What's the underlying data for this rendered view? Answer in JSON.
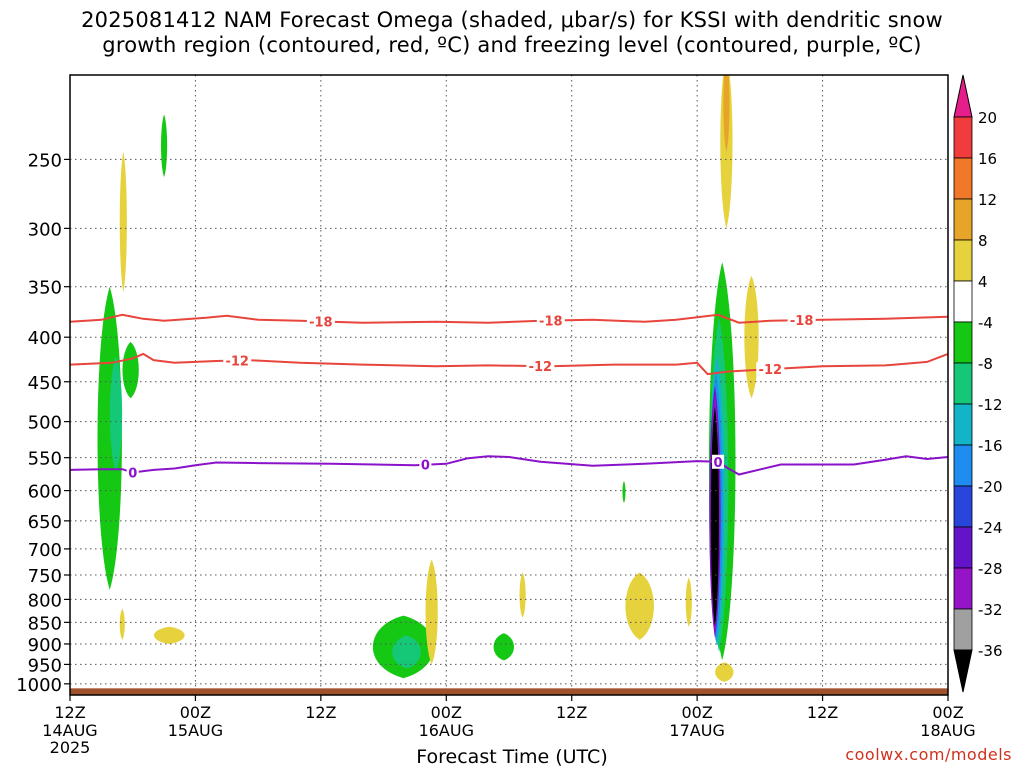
{
  "title": {
    "line1": "2025081412 NAM Forecast Omega (shaded, μbar/s) for KSSI with dendritic snow",
    "line2": "growth region (contoured, red, ºC) and freezing level (contoured, purple, ºC)"
  },
  "credit": "coolwx.com/models",
  "colors": {
    "snow_growth_contour": "#e8453c",
    "freezing_level_contour": "#8a12c8",
    "ground": "#a0522d"
  },
  "chart_data": {
    "type": "heatmap",
    "xlabel": "Forecast Time (UTC)",
    "ylabel": "",
    "xlim_hours": [
      0,
      84
    ],
    "ylim_hpa": [
      1030,
      200
    ],
    "y_scale": "log-pressure",
    "grid": true,
    "x_ticks": [
      {
        "hour": 0,
        "label": "12Z",
        "sub": "14AUG",
        "sub2": "2025"
      },
      {
        "hour": 12,
        "label": "00Z",
        "sub": "15AUG"
      },
      {
        "hour": 24,
        "label": "12Z",
        "sub": ""
      },
      {
        "hour": 36,
        "label": "00Z",
        "sub": "16AUG"
      },
      {
        "hour": 48,
        "label": "12Z",
        "sub": ""
      },
      {
        "hour": 60,
        "label": "00Z",
        "sub": "17AUG"
      },
      {
        "hour": 72,
        "label": "12Z",
        "sub": ""
      },
      {
        "hour": 84,
        "label": "00Z",
        "sub": "18AUG"
      }
    ],
    "y_ticks": [
      "250",
      "300",
      "350",
      "400",
      "450",
      "500",
      "550",
      "600",
      "650",
      "700",
      "750",
      "800",
      "850",
      "900",
      "950",
      "1000"
    ],
    "colorbar": {
      "labels": [
        "20",
        "16",
        "12",
        "8",
        "4",
        "-4",
        "-8",
        "-12",
        "-16",
        "-20",
        "-24",
        "-28",
        "-32",
        "-36"
      ],
      "colors": [
        "#f03c3c",
        "#f07828",
        "#e6a428",
        "#e6d23c",
        "#ffffff",
        "#14c814",
        "#14c878",
        "#14b4c8",
        "#1e8cf0",
        "#2846dc",
        "#6414c8",
        "#9614c8",
        "#a0a0a0",
        "#000000"
      ],
      "top_arrow_color": "#e61e8c",
      "bottom_arrow_color": "#000000"
    },
    "contours": [
      {
        "name": "-18",
        "color": "#e8453c",
        "points": [
          [
            0,
            384
          ],
          [
            3,
            382
          ],
          [
            5,
            377
          ],
          [
            7,
            381
          ],
          [
            9,
            383
          ],
          [
            13,
            380
          ],
          [
            15,
            378
          ],
          [
            18,
            382
          ],
          [
            22,
            383
          ],
          [
            28,
            385
          ],
          [
            35,
            384
          ],
          [
            40,
            385
          ],
          [
            45,
            383
          ],
          [
            50,
            382
          ],
          [
            55,
            384
          ],
          [
            58,
            382
          ],
          [
            62,
            377
          ],
          [
            64,
            385
          ],
          [
            67,
            383
          ],
          [
            72,
            382
          ],
          [
            78,
            381
          ],
          [
            84,
            379
          ]
        ],
        "labels": [
          [
            24,
            "-18"
          ],
          [
            46,
            "-18"
          ],
          [
            70,
            "-18"
          ]
        ]
      },
      {
        "name": "-12",
        "color": "#e8453c",
        "points": [
          [
            0,
            430
          ],
          [
            4,
            428
          ],
          [
            6,
            423
          ],
          [
            7,
            418
          ],
          [
            8,
            425
          ],
          [
            10,
            428
          ],
          [
            14,
            426
          ],
          [
            17,
            425
          ],
          [
            22,
            428
          ],
          [
            28,
            430
          ],
          [
            35,
            432
          ],
          [
            40,
            431
          ],
          [
            46,
            432
          ],
          [
            52,
            430
          ],
          [
            58,
            430
          ],
          [
            60,
            428
          ],
          [
            61,
            441
          ],
          [
            63,
            438
          ],
          [
            66,
            436
          ],
          [
            72,
            432
          ],
          [
            78,
            431
          ],
          [
            82,
            427
          ],
          [
            84,
            418
          ]
        ],
        "labels": [
          [
            16,
            "-12"
          ],
          [
            45,
            "-12"
          ],
          [
            67,
            "-12"
          ]
        ]
      },
      {
        "name": "0",
        "color": "#8a12c8",
        "points": [
          [
            0,
            568
          ],
          [
            3,
            567
          ],
          [
            5,
            567
          ],
          [
            6,
            572
          ],
          [
            8,
            568
          ],
          [
            10,
            566
          ],
          [
            12,
            561
          ],
          [
            14,
            557
          ],
          [
            18,
            558
          ],
          [
            25,
            559
          ],
          [
            33,
            561
          ],
          [
            36,
            559
          ],
          [
            38,
            551
          ],
          [
            40,
            548
          ],
          [
            42,
            549
          ],
          [
            45,
            556
          ],
          [
            50,
            562
          ],
          [
            55,
            559
          ],
          [
            60,
            555
          ],
          [
            62,
            556
          ],
          [
            63,
            566
          ],
          [
            64,
            575
          ],
          [
            68,
            560
          ],
          [
            75,
            560
          ],
          [
            78,
            553
          ],
          [
            80,
            548
          ],
          [
            82,
            552
          ],
          [
            84,
            549
          ]
        ],
        "labels": [
          [
            6,
            "0"
          ],
          [
            34,
            "0"
          ],
          [
            62,
            "0"
          ]
        ]
      }
    ],
    "shaded_regions": [
      {
        "color": "#e6d23c",
        "cx": 5.1,
        "p_top": 245,
        "p_bot": 355,
        "half_width_h": 0.35
      },
      {
        "color": "#14c814",
        "cx": 9.0,
        "p_top": 222,
        "p_bot": 262,
        "half_width_h": 0.3
      },
      {
        "color": "#14c814",
        "cx": 3.8,
        "p_top": 350,
        "p_bot": 780,
        "half_width_h": 1.2
      },
      {
        "color": "#14c878",
        "cx": 4.4,
        "p_top": 420,
        "p_bot": 570,
        "half_width_h": 0.6
      },
      {
        "color": "#14c814",
        "cx": 5.8,
        "p_top": 405,
        "p_bot": 470,
        "half_width_h": 0.8
      },
      {
        "color": "#e6d23c",
        "cx": 5.0,
        "p_top": 820,
        "p_bot": 890,
        "half_width_h": 0.25
      },
      {
        "color": "#e6d23c",
        "cx": 9.5,
        "p_top": 860,
        "p_bot": 900,
        "half_width_h": 1.5
      },
      {
        "color": "#14c814",
        "cx": 31.9,
        "p_top": 835,
        "p_bot": 985,
        "half_width_h": 3.0
      },
      {
        "color": "#14c878",
        "cx": 32.2,
        "p_top": 880,
        "p_bot": 960,
        "half_width_h": 1.4
      },
      {
        "color": "#e6d23c",
        "cx": 34.6,
        "p_top": 720,
        "p_bot": 950,
        "half_width_h": 0.6
      },
      {
        "color": "#14c814",
        "cx": 41.5,
        "p_top": 875,
        "p_bot": 940,
        "half_width_h": 1.0
      },
      {
        "color": "#e6d23c",
        "cx": 43.3,
        "p_top": 745,
        "p_bot": 840,
        "half_width_h": 0.3
      },
      {
        "color": "#14c814",
        "cx": 53.0,
        "p_top": 585,
        "p_bot": 620,
        "half_width_h": 0.15
      },
      {
        "color": "#e6d23c",
        "cx": 54.5,
        "p_top": 745,
        "p_bot": 890,
        "half_width_h": 1.4
      },
      {
        "color": "#e6d23c",
        "cx": 59.2,
        "p_top": 755,
        "p_bot": 860,
        "half_width_h": 0.3
      },
      {
        "color": "#e6d23c",
        "cx": 62.8,
        "p_top": 190,
        "p_bot": 300,
        "half_width_h": 0.6
      },
      {
        "color": "#e6a428",
        "cx": 62.8,
        "p_top": 190,
        "p_bot": 245,
        "half_width_h": 0.3
      },
      {
        "color": "#e6d23c",
        "cx": 65.2,
        "p_top": 340,
        "p_bot": 470,
        "half_width_h": 0.7
      },
      {
        "color": "#e6d23c",
        "cx": 62.6,
        "p_top": 945,
        "p_bot": 995,
        "half_width_h": 0.9
      },
      {
        "color": "#14c814",
        "cx": 62.4,
        "p_top": 328,
        "p_bot": 940,
        "half_width_h": 1.3
      },
      {
        "color": "#14c878",
        "cx": 62.1,
        "p_top": 380,
        "p_bot": 920,
        "half_width_h": 0.9
      },
      {
        "color": "#14b4c8",
        "cx": 61.9,
        "p_top": 420,
        "p_bot": 905,
        "half_width_h": 0.75
      },
      {
        "color": "#1e8cf0",
        "cx": 61.8,
        "p_top": 440,
        "p_bot": 895,
        "half_width_h": 0.65
      },
      {
        "color": "#6414c8",
        "cx": 61.7,
        "p_top": 455,
        "p_bot": 885,
        "half_width_h": 0.55
      },
      {
        "color": "#9614c8",
        "cx": 61.7,
        "p_top": 465,
        "p_bot": 878,
        "half_width_h": 0.48
      },
      {
        "color": "#000000",
        "cx": 61.7,
        "p_top": 480,
        "p_bot": 860,
        "half_width_h": 0.4
      }
    ],
    "ground_level_hpa": 1012
  }
}
